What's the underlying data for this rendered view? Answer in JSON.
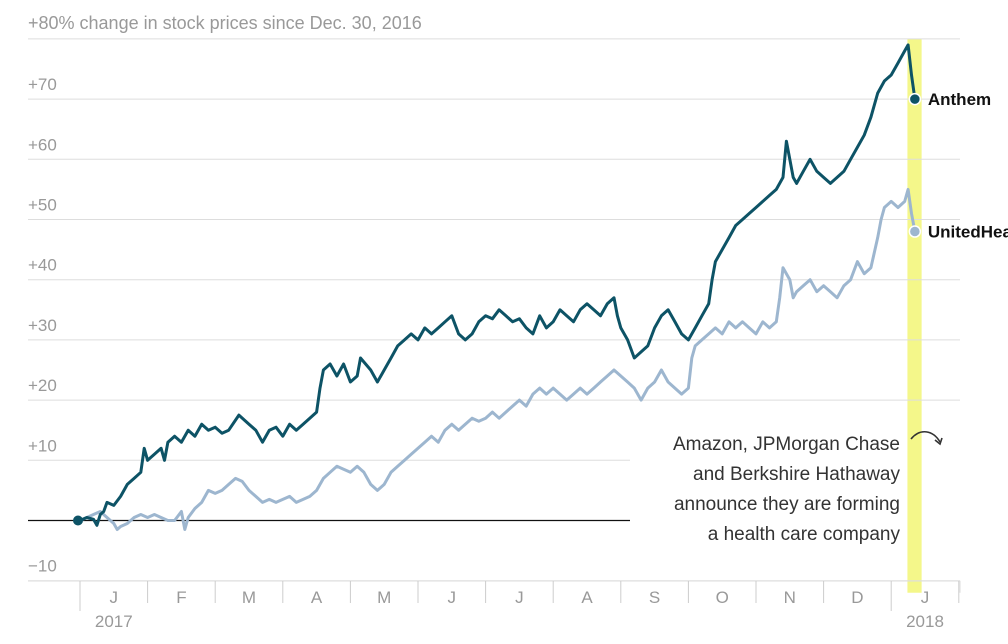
{
  "chart_data": {
    "type": "line",
    "title": "+80% change in stock prices since Dec. 30, 2016",
    "ylabel": "% change in stock prices since Dec. 30, 2016",
    "ylim": [
      -10,
      80
    ],
    "yticks": [
      -10,
      0,
      10,
      20,
      30,
      40,
      50,
      60,
      70,
      80
    ],
    "ytick_labels": [
      "−10",
      "0",
      "+10",
      "+20",
      "+30",
      "+40",
      "+50",
      "+60",
      "+70"
    ],
    "xlim": [
      0,
      13.2
    ],
    "x_month_labels": [
      "J",
      "F",
      "M",
      "A",
      "M",
      "J",
      "J",
      "A",
      "S",
      "O",
      "N",
      "D",
      "J"
    ],
    "year_labels": [
      {
        "label": "2017",
        "x": 0.5
      },
      {
        "label": "2018",
        "x": 12.5
      }
    ],
    "colors": {
      "anthem": "#0d5366",
      "unitedhealth": "#9db6cf",
      "highlight": "#f4f78a",
      "annotation": "#333333"
    },
    "series": [
      {
        "name": "Anthem",
        "end_label": "Anthem",
        "color": "#0d5366",
        "points": [
          [
            0,
            0
          ],
          [
            0.1,
            0.5
          ],
          [
            0.2,
            0.2
          ],
          [
            0.25,
            -0.8
          ],
          [
            0.3,
            1
          ],
          [
            0.35,
            1.5
          ],
          [
            0.4,
            3
          ],
          [
            0.5,
            2.5
          ],
          [
            0.6,
            4
          ],
          [
            0.7,
            6
          ],
          [
            0.8,
            7
          ],
          [
            0.9,
            8
          ],
          [
            0.95,
            12
          ],
          [
            1.0,
            10
          ],
          [
            1.1,
            11
          ],
          [
            1.2,
            12
          ],
          [
            1.25,
            10
          ],
          [
            1.3,
            13
          ],
          [
            1.4,
            14
          ],
          [
            1.5,
            13
          ],
          [
            1.6,
            15
          ],
          [
            1.7,
            14
          ],
          [
            1.8,
            16
          ],
          [
            1.9,
            15
          ],
          [
            2.0,
            15.5
          ],
          [
            2.1,
            14.5
          ],
          [
            2.2,
            15
          ],
          [
            2.35,
            17.5
          ],
          [
            2.5,
            16
          ],
          [
            2.6,
            15
          ],
          [
            2.7,
            13
          ],
          [
            2.8,
            15
          ],
          [
            2.9,
            15.5
          ],
          [
            3.0,
            14
          ],
          [
            3.1,
            16
          ],
          [
            3.2,
            15
          ],
          [
            3.3,
            16
          ],
          [
            3.4,
            17
          ],
          [
            3.5,
            18
          ],
          [
            3.55,
            22
          ],
          [
            3.6,
            25
          ],
          [
            3.7,
            26
          ],
          [
            3.8,
            24
          ],
          [
            3.9,
            26
          ],
          [
            4.0,
            23
          ],
          [
            4.1,
            24
          ],
          [
            4.15,
            27
          ],
          [
            4.3,
            25
          ],
          [
            4.4,
            23
          ],
          [
            4.5,
            25
          ],
          [
            4.6,
            27
          ],
          [
            4.7,
            29
          ],
          [
            4.8,
            30
          ],
          [
            4.9,
            31
          ],
          [
            5.0,
            30
          ],
          [
            5.1,
            32
          ],
          [
            5.2,
            31
          ],
          [
            5.3,
            32
          ],
          [
            5.4,
            33
          ],
          [
            5.5,
            34
          ],
          [
            5.6,
            31
          ],
          [
            5.7,
            30
          ],
          [
            5.8,
            31
          ],
          [
            5.9,
            33
          ],
          [
            6.0,
            34
          ],
          [
            6.1,
            33.5
          ],
          [
            6.2,
            35
          ],
          [
            6.3,
            34
          ],
          [
            6.4,
            33
          ],
          [
            6.5,
            33.5
          ],
          [
            6.6,
            32
          ],
          [
            6.7,
            31
          ],
          [
            6.8,
            34
          ],
          [
            6.9,
            32
          ],
          [
            7.0,
            33
          ],
          [
            7.1,
            35
          ],
          [
            7.2,
            34
          ],
          [
            7.3,
            33
          ],
          [
            7.4,
            35
          ],
          [
            7.5,
            36
          ],
          [
            7.6,
            35
          ],
          [
            7.7,
            34
          ],
          [
            7.8,
            36
          ],
          [
            7.9,
            37
          ],
          [
            7.95,
            34
          ],
          [
            8.0,
            32
          ],
          [
            8.1,
            30
          ],
          [
            8.2,
            27
          ],
          [
            8.3,
            28
          ],
          [
            8.4,
            29
          ],
          [
            8.5,
            32
          ],
          [
            8.6,
            34
          ],
          [
            8.7,
            35
          ],
          [
            8.8,
            33
          ],
          [
            8.9,
            31
          ],
          [
            9.0,
            30
          ],
          [
            9.1,
            32
          ],
          [
            9.2,
            34
          ],
          [
            9.3,
            36
          ],
          [
            9.35,
            40
          ],
          [
            9.4,
            43
          ],
          [
            9.5,
            45
          ],
          [
            9.6,
            47
          ],
          [
            9.7,
            49
          ],
          [
            9.8,
            50
          ],
          [
            9.9,
            51
          ],
          [
            10.0,
            52
          ],
          [
            10.1,
            53
          ],
          [
            10.2,
            54
          ],
          [
            10.3,
            55
          ],
          [
            10.4,
            57
          ],
          [
            10.45,
            63
          ],
          [
            10.5,
            60
          ],
          [
            10.55,
            57
          ],
          [
            10.6,
            56
          ],
          [
            10.7,
            58
          ],
          [
            10.8,
            60
          ],
          [
            10.9,
            58
          ],
          [
            11.0,
            57
          ],
          [
            11.1,
            56
          ],
          [
            11.2,
            57
          ],
          [
            11.3,
            58
          ],
          [
            11.4,
            60
          ],
          [
            11.5,
            62
          ],
          [
            11.6,
            64
          ],
          [
            11.7,
            67
          ],
          [
            11.8,
            71
          ],
          [
            11.9,
            73
          ],
          [
            12.0,
            74
          ],
          [
            12.05,
            75
          ],
          [
            12.1,
            76
          ],
          [
            12.2,
            78
          ],
          [
            12.25,
            79
          ],
          [
            12.3,
            74
          ],
          [
            12.35,
            70
          ]
        ]
      },
      {
        "name": "UnitedHealth",
        "end_label": "UnitedHealth",
        "color": "#9db6cf",
        "points": [
          [
            0,
            0
          ],
          [
            0.1,
            0.5
          ],
          [
            0.2,
            1
          ],
          [
            0.3,
            1.5
          ],
          [
            0.4,
            0.5
          ],
          [
            0.5,
            -0.5
          ],
          [
            0.55,
            -1.5
          ],
          [
            0.6,
            -1
          ],
          [
            0.7,
            -0.5
          ],
          [
            0.8,
            0.5
          ],
          [
            0.9,
            1
          ],
          [
            1.0,
            0.5
          ],
          [
            1.1,
            1
          ],
          [
            1.2,
            0.5
          ],
          [
            1.3,
            0
          ],
          [
            1.4,
            0
          ],
          [
            1.5,
            1.5
          ],
          [
            1.55,
            -1.5
          ],
          [
            1.6,
            0.5
          ],
          [
            1.7,
            2
          ],
          [
            1.8,
            3
          ],
          [
            1.9,
            5
          ],
          [
            2.0,
            4.5
          ],
          [
            2.1,
            5
          ],
          [
            2.2,
            6
          ],
          [
            2.3,
            7
          ],
          [
            2.4,
            6.5
          ],
          [
            2.5,
            5
          ],
          [
            2.6,
            4
          ],
          [
            2.7,
            3
          ],
          [
            2.8,
            3.5
          ],
          [
            2.9,
            3
          ],
          [
            3.0,
            3.5
          ],
          [
            3.1,
            4
          ],
          [
            3.2,
            3
          ],
          [
            3.3,
            3.5
          ],
          [
            3.4,
            4
          ],
          [
            3.5,
            5
          ],
          [
            3.6,
            7
          ],
          [
            3.7,
            8
          ],
          [
            3.8,
            9
          ],
          [
            3.9,
            8.5
          ],
          [
            4.0,
            8
          ],
          [
            4.1,
            9
          ],
          [
            4.2,
            8
          ],
          [
            4.3,
            6
          ],
          [
            4.4,
            5
          ],
          [
            4.5,
            6
          ],
          [
            4.6,
            8
          ],
          [
            4.7,
            9
          ],
          [
            4.8,
            10
          ],
          [
            4.9,
            11
          ],
          [
            5.0,
            12
          ],
          [
            5.1,
            13
          ],
          [
            5.2,
            14
          ],
          [
            5.3,
            13
          ],
          [
            5.4,
            15
          ],
          [
            5.5,
            16
          ],
          [
            5.6,
            15
          ],
          [
            5.7,
            16
          ],
          [
            5.8,
            17
          ],
          [
            5.9,
            16.5
          ],
          [
            6.0,
            17
          ],
          [
            6.1,
            18
          ],
          [
            6.2,
            17
          ],
          [
            6.3,
            18
          ],
          [
            6.4,
            19
          ],
          [
            6.5,
            20
          ],
          [
            6.6,
            19
          ],
          [
            6.7,
            21
          ],
          [
            6.8,
            22
          ],
          [
            6.9,
            21
          ],
          [
            7.0,
            22
          ],
          [
            7.1,
            21
          ],
          [
            7.2,
            20
          ],
          [
            7.3,
            21
          ],
          [
            7.4,
            22
          ],
          [
            7.5,
            21
          ],
          [
            7.6,
            22
          ],
          [
            7.7,
            23
          ],
          [
            7.8,
            24
          ],
          [
            7.9,
            25
          ],
          [
            8.0,
            24
          ],
          [
            8.1,
            23
          ],
          [
            8.2,
            22
          ],
          [
            8.3,
            20
          ],
          [
            8.4,
            22
          ],
          [
            8.5,
            23
          ],
          [
            8.6,
            25
          ],
          [
            8.7,
            23
          ],
          [
            8.8,
            22
          ],
          [
            8.9,
            21
          ],
          [
            9.0,
            22
          ],
          [
            9.05,
            27
          ],
          [
            9.1,
            29
          ],
          [
            9.2,
            30
          ],
          [
            9.3,
            31
          ],
          [
            9.4,
            32
          ],
          [
            9.5,
            31
          ],
          [
            9.6,
            33
          ],
          [
            9.7,
            32
          ],
          [
            9.8,
            33
          ],
          [
            9.9,
            32
          ],
          [
            10.0,
            31
          ],
          [
            10.1,
            33
          ],
          [
            10.2,
            32
          ],
          [
            10.3,
            33
          ],
          [
            10.35,
            37
          ],
          [
            10.4,
            42
          ],
          [
            10.5,
            40
          ],
          [
            10.55,
            37
          ],
          [
            10.6,
            38
          ],
          [
            10.7,
            39
          ],
          [
            10.8,
            40
          ],
          [
            10.9,
            38
          ],
          [
            11.0,
            39
          ],
          [
            11.1,
            38
          ],
          [
            11.2,
            37
          ],
          [
            11.3,
            39
          ],
          [
            11.4,
            40
          ],
          [
            11.5,
            43
          ],
          [
            11.6,
            41
          ],
          [
            11.7,
            42
          ],
          [
            11.8,
            47
          ],
          [
            11.85,
            50
          ],
          [
            11.9,
            52
          ],
          [
            12.0,
            53
          ],
          [
            12.1,
            52
          ],
          [
            12.2,
            53
          ],
          [
            12.25,
            55
          ],
          [
            12.3,
            51
          ],
          [
            12.35,
            48
          ]
        ]
      }
    ],
    "highlight_band": {
      "x_start": 12.24,
      "x_end": 12.45
    },
    "annotation": {
      "lines": [
        "Amazon, JPMorgan Chase",
        "and Berkshire Hathaway",
        "announce they are forming",
        "a health care company"
      ]
    },
    "start_marker": {
      "x": 0,
      "y": 0
    }
  }
}
